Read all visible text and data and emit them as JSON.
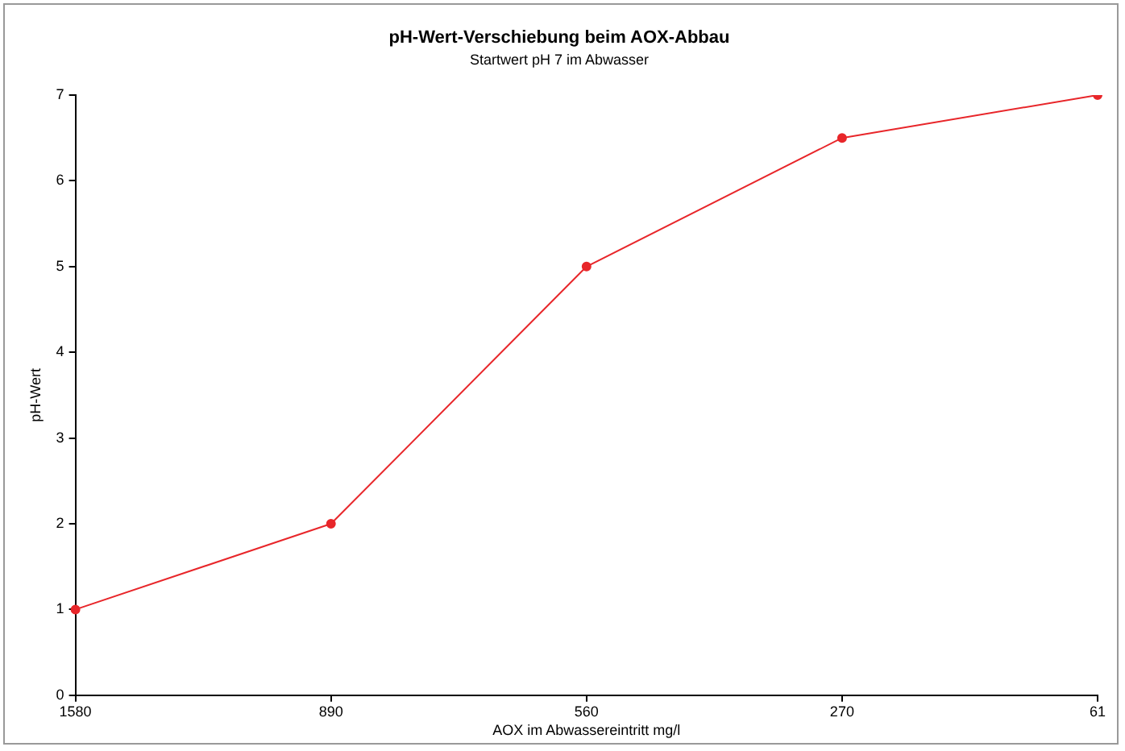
{
  "chart_data": {
    "type": "line",
    "title": "pH-Wert-Verschiebung beim AOX-Abbau",
    "subtitle": "Startwert pH 7 im Abwasser",
    "xlabel": "AOX im Abwassereintritt mg/l",
    "ylabel": "pH-Wert",
    "categories": [
      "1580",
      "890",
      "560",
      "270",
      "61"
    ],
    "series": [
      {
        "color": "#e8262a",
        "values": [
          1,
          2,
          5,
          6.5,
          7
        ]
      }
    ],
    "ylim": [
      0,
      7
    ],
    "yticks": [
      0,
      1,
      2,
      3,
      4,
      5,
      6,
      7
    ],
    "grid": false,
    "legend": false,
    "marker": "circle",
    "line_style": "solid"
  }
}
